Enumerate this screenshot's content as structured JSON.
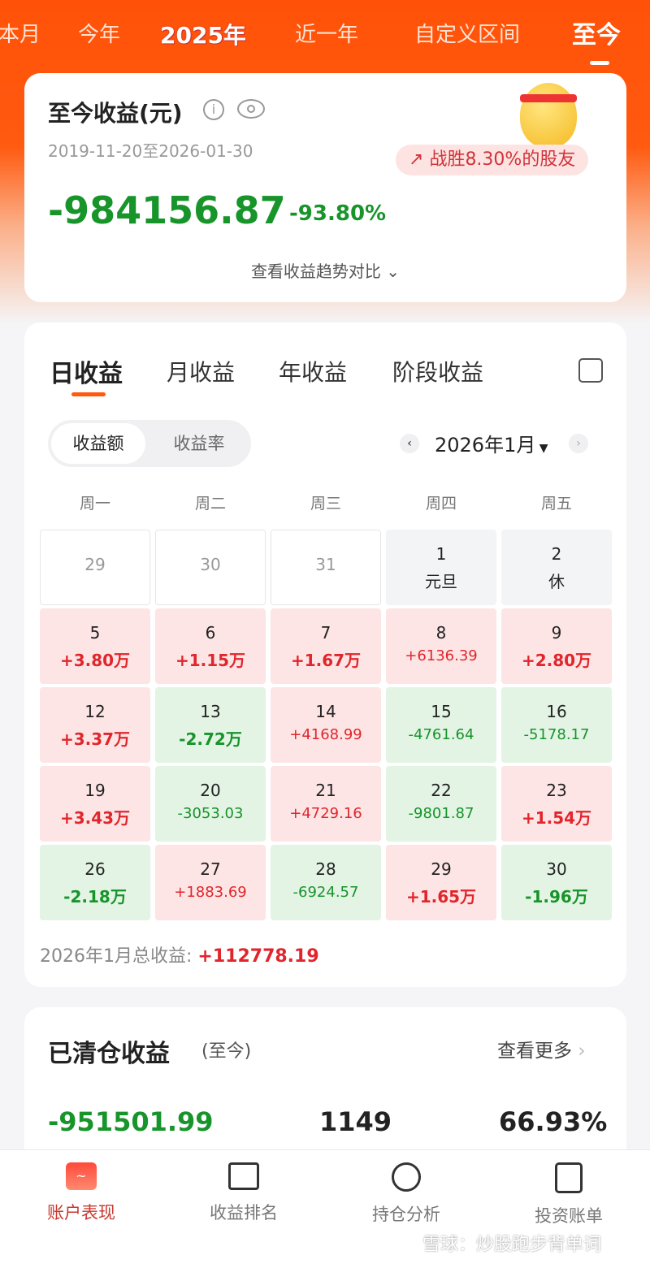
{
  "top_tabs": [
    {
      "label": "本月"
    },
    {
      "label": "今年"
    },
    {
      "label": "2025年"
    },
    {
      "label": "近一年"
    },
    {
      "label": "自定义区间"
    },
    {
      "label": "至今"
    }
  ],
  "summary": {
    "title": "至今收益(元)",
    "date_range": "2019-11-20至2026-01-30",
    "beat_badge": "战胜8.30%的股友",
    "amount": "-984156.87",
    "percent": "-93.80%",
    "trend_link": "查看收益趋势对比"
  },
  "profit": {
    "tabs": [
      "日收益",
      "月收益",
      "年收益",
      "阶段收益"
    ],
    "toggle": [
      "收益额",
      "收益率"
    ],
    "month": "2026年1月",
    "weekdays": [
      "周一",
      "周二",
      "周三",
      "周四",
      "周五"
    ],
    "cells": [
      {
        "d": "29",
        "v": "",
        "t": "out"
      },
      {
        "d": "30",
        "v": "",
        "t": "out"
      },
      {
        "d": "31",
        "v": "",
        "t": "out"
      },
      {
        "d": "1",
        "v": "元旦",
        "t": "hol"
      },
      {
        "d": "2",
        "v": "休",
        "t": "hol"
      },
      {
        "d": "5",
        "v": "+3.80万",
        "t": "up"
      },
      {
        "d": "6",
        "v": "+1.15万",
        "t": "up"
      },
      {
        "d": "7",
        "v": "+1.67万",
        "t": "up"
      },
      {
        "d": "8",
        "v": "+6136.39",
        "t": "up"
      },
      {
        "d": "9",
        "v": "+2.80万",
        "t": "up"
      },
      {
        "d": "12",
        "v": "+3.37万",
        "t": "up"
      },
      {
        "d": "13",
        "v": "-2.72万",
        "t": "dn"
      },
      {
        "d": "14",
        "v": "+4168.99",
        "t": "up"
      },
      {
        "d": "15",
        "v": "-4761.64",
        "t": "dn"
      },
      {
        "d": "16",
        "v": "-5178.17",
        "t": "dn"
      },
      {
        "d": "19",
        "v": "+3.43万",
        "t": "up"
      },
      {
        "d": "20",
        "v": "-3053.03",
        "t": "dn"
      },
      {
        "d": "21",
        "v": "+4729.16",
        "t": "up"
      },
      {
        "d": "22",
        "v": "-9801.87",
        "t": "dn"
      },
      {
        "d": "23",
        "v": "+1.54万",
        "t": "up"
      },
      {
        "d": "26",
        "v": "-2.18万",
        "t": "dn"
      },
      {
        "d": "27",
        "v": "+1883.69",
        "t": "up"
      },
      {
        "d": "28",
        "v": "-6924.57",
        "t": "dn"
      },
      {
        "d": "29",
        "v": "+1.65万",
        "t": "up"
      },
      {
        "d": "30",
        "v": "-1.96万",
        "t": "dn"
      }
    ],
    "total_label": "2026年1月总收益:",
    "total_value": "+112778.19"
  },
  "cleared": {
    "title": "已清仓收益",
    "sub": "(至今)",
    "more": "查看更多",
    "amount": "-951501.99",
    "count": "1149",
    "rate": "66.93%"
  },
  "nav": [
    {
      "label": "账户表现",
      "icon": "account-chart-icon"
    },
    {
      "label": "收益排名",
      "icon": "bar-chart-icon"
    },
    {
      "label": "持仓分析",
      "icon": "pie-chart-icon"
    },
    {
      "label": "投资账单",
      "icon": "bill-icon"
    }
  ],
  "watermark": "雪球：炒股跑步背单词",
  "colors": {
    "accent": "#ff5a10",
    "up": "#e0262c",
    "down": "#17942a"
  }
}
